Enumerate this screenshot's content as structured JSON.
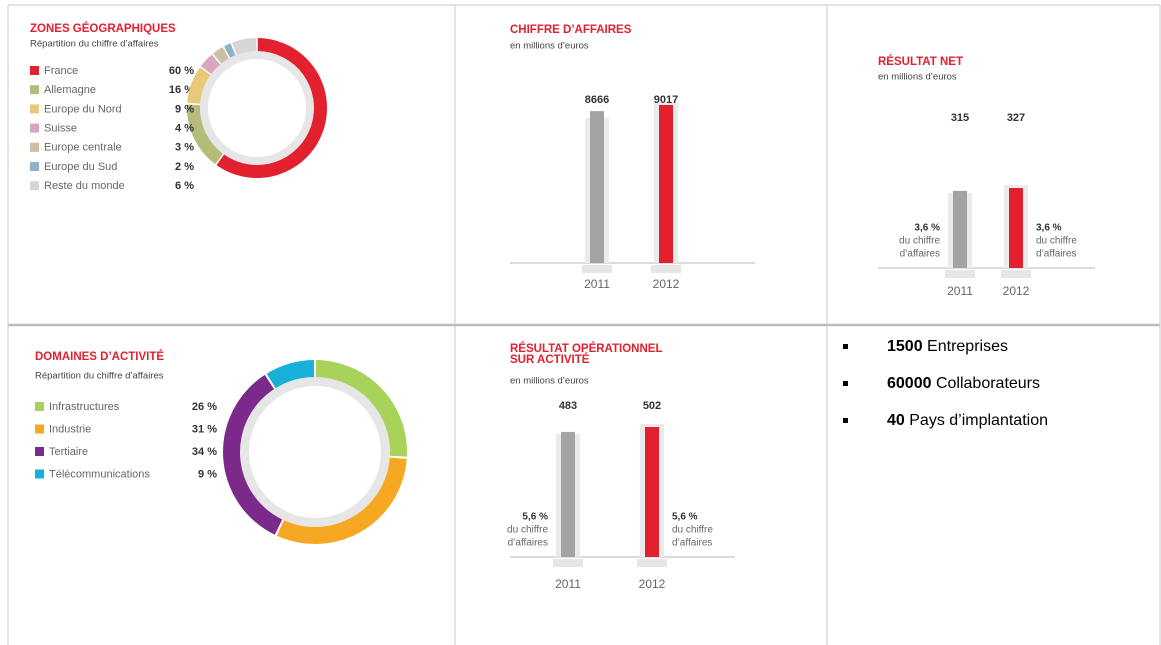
{
  "chart_data": [
    {
      "type": "pie",
      "title": "ZONES GÉOGRAPHIQUES",
      "subtitle": "Répartition du chiffre d’affaires",
      "categories": [
        "France",
        "Allemagne",
        "Europe du Nord",
        "Suisse",
        "Europe centrale",
        "Europe du Sud",
        "Reste du monde"
      ],
      "values": [
        60,
        16,
        9,
        4,
        3,
        2,
        6
      ],
      "value_labels": [
        "60 %",
        "16 %",
        "9 %",
        "4 %",
        "3 %",
        "2 %",
        "6 %"
      ],
      "colors": [
        "#e3202e",
        "#b5bc7a",
        "#e8c97a",
        "#d9a6bf",
        "#cbbfa6",
        "#8fb3c4",
        "#d6d6d6"
      ]
    },
    {
      "type": "bar",
      "title": "CHIFFRE D’AFFAIRES",
      "subtitle": "en millions d’euros",
      "categories": [
        "2011",
        "2012"
      ],
      "values": [
        8666,
        9017
      ],
      "colors": [
        "#a3a3a3",
        "#e3202e"
      ]
    },
    {
      "type": "bar",
      "title": "RÉSULTAT NET",
      "subtitle": "en millions d’euros",
      "categories": [
        "2011",
        "2012"
      ],
      "values": [
        315,
        327
      ],
      "colors": [
        "#a3a3a3",
        "#e3202e"
      ],
      "annotations": [
        [
          "3,6 %",
          "du chiffre",
          "d’affaires"
        ],
        [
          "3,6 %",
          "du chiffre",
          "d’affaires"
        ]
      ]
    },
    {
      "type": "pie",
      "title": "DOMAINES D’ACTIVITÉ",
      "subtitle": "Répartition du chiffre d’affaires",
      "categories": [
        "Infrastructures",
        "Industrie",
        "Tertiaire",
        "Télécommunications"
      ],
      "values": [
        26,
        31,
        34,
        9
      ],
      "value_labels": [
        "26 %",
        "31 %",
        "34 %",
        "9 %"
      ],
      "colors": [
        "#a8d25a",
        "#f7a823",
        "#7b2a8c",
        "#17b0d8"
      ]
    },
    {
      "type": "bar",
      "title": [
        "RÉSULTAT OPÉRATIONNEL",
        "SUR ACTIVITÉ"
      ],
      "subtitle": "en millions d’euros",
      "categories": [
        "2011",
        "2012"
      ],
      "values": [
        483,
        502
      ],
      "colors": [
        "#a3a3a3",
        "#e3202e"
      ],
      "annotations": [
        [
          "5,6 %",
          "du chiffre",
          "d’affaires"
        ],
        [
          "5,6 %",
          "du chiffre",
          "d’affaires"
        ]
      ]
    }
  ],
  "list": [
    {
      "number": 1500,
      "text": "Entreprises"
    },
    {
      "number": 60000,
      "text": "Collaborateurs"
    },
    {
      "number": 40,
      "text": "Pays d’implantation"
    }
  ]
}
